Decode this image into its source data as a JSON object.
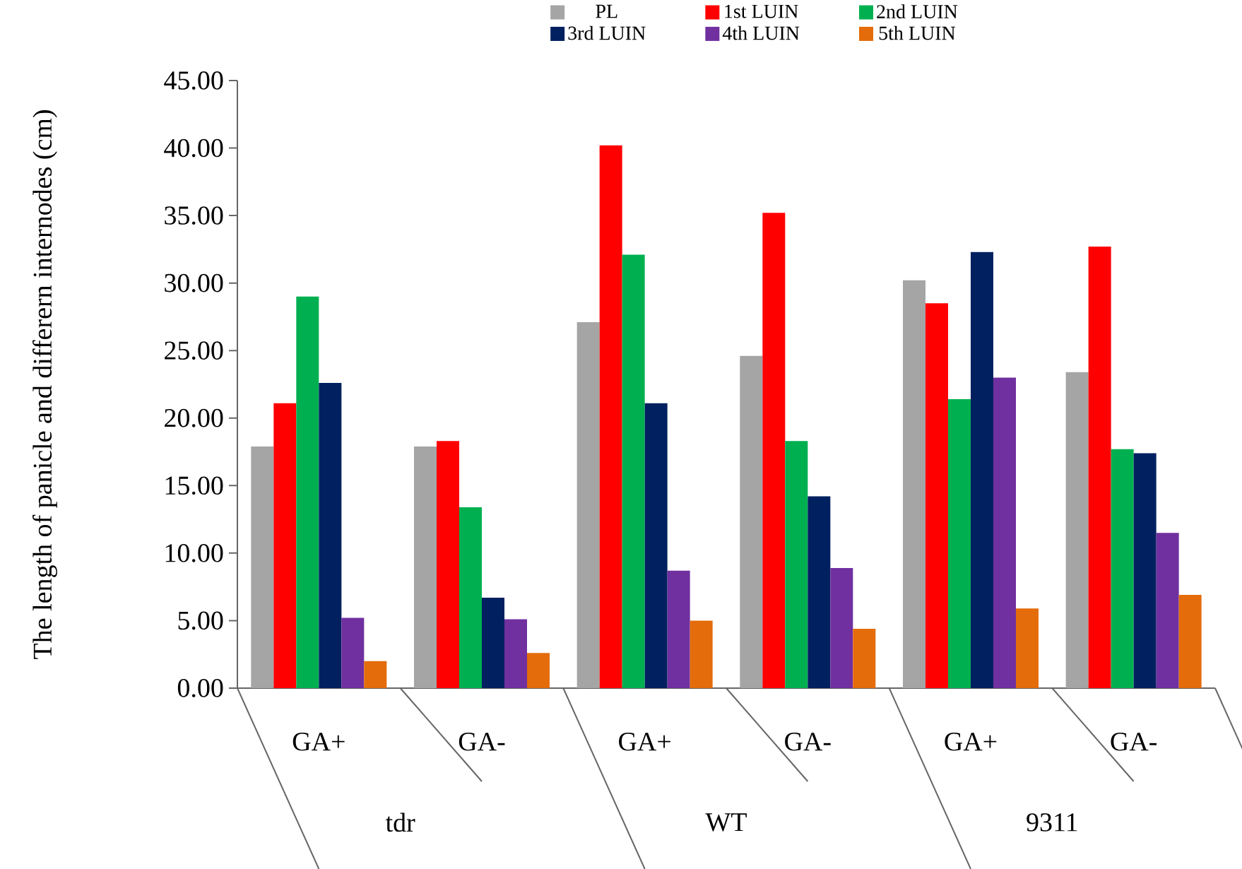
{
  "chart_data": {
    "type": "bar",
    "ylabel": "The length of panicle and differern internodes (cm)",
    "categories": [
      "GA+",
      "GA-",
      "GA+",
      "GA-",
      "GA+",
      "GA-"
    ],
    "annotations": [
      "tdr",
      "WT",
      "9311"
    ],
    "series": [
      {
        "name": "PL",
        "color": "#a5a5a5",
        "values": [
          17.9,
          17.9,
          27.1,
          24.6,
          30.2,
          23.4
        ]
      },
      {
        "name": "1st LUIN",
        "color": "#ff0000",
        "values": [
          21.1,
          18.3,
          40.2,
          35.2,
          28.5,
          32.7
        ]
      },
      {
        "name": "2nd LUIN",
        "color": "#00b050",
        "values": [
          29.0,
          13.4,
          32.1,
          18.3,
          21.4,
          17.7
        ]
      },
      {
        "name": "3rd LUIN",
        "color": "#002060",
        "values": [
          22.6,
          6.7,
          21.1,
          14.2,
          32.3,
          17.4
        ]
      },
      {
        "name": "4th LUIN",
        "color": "#7030a0",
        "values": [
          5.2,
          5.1,
          8.7,
          8.9,
          23.0,
          11.5
        ]
      },
      {
        "name": "5th LUIN",
        "color": "#e46c0a",
        "values": [
          2.0,
          2.6,
          5.0,
          4.4,
          5.9,
          6.9
        ]
      }
    ],
    "ylim": [
      0,
      45
    ],
    "yticks": [
      {
        "value": 0,
        "label": "0.00"
      },
      {
        "value": 5,
        "label": "5.00"
      },
      {
        "value": 10,
        "label": "10.00"
      },
      {
        "value": 15,
        "label": "15.00"
      },
      {
        "value": 20,
        "label": "20.00"
      },
      {
        "value": 25,
        "label": "25.00"
      },
      {
        "value": 30,
        "label": "30.00"
      },
      {
        "value": 35,
        "label": "35.00"
      },
      {
        "value": 40,
        "label": "40.00"
      },
      {
        "value": 45,
        "label": "45.00"
      }
    ],
    "legend": "top",
    "grid": false
  }
}
